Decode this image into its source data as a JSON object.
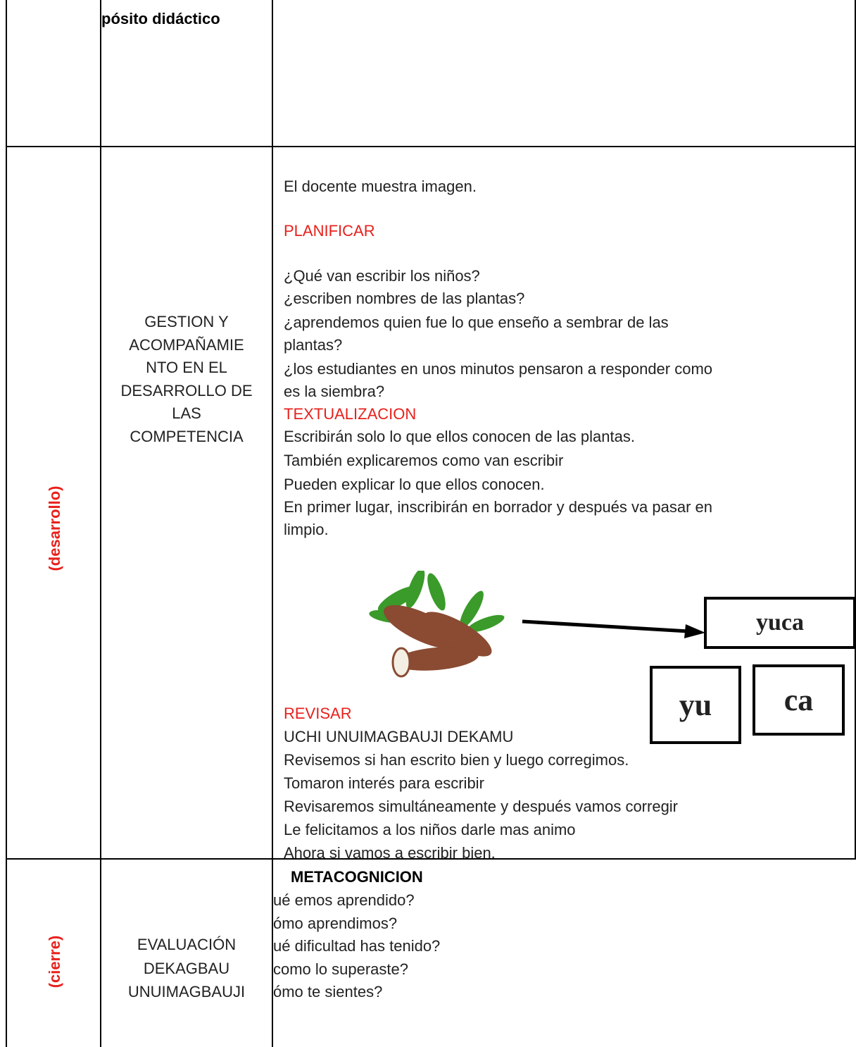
{
  "rows": [
    {
      "process": "pósito didáctico"
    },
    {
      "phase": "(desarrollo)",
      "process": [
        "GESTION Y",
        "ACOMPAÑAMIE",
        "NTO   EN EL",
        "DESARROLLO DE",
        "LAS",
        "COMPETENCIA"
      ],
      "content": [
        "El docente muestra imagen.",
        "PLANIFICAR",
        "¿Qué van escribir los niños?",
        "¿escriben nombres de las plantas?",
        "¿aprendemos quien fue lo que enseño a sembrar de las",
        "plantas?",
        "¿los estudiantes en unos minutos pensaron a responder como",
        "es la siembra?",
        "TEXTUALIZACION",
        "Escribirán solo lo que ellos conocen de las plantas.",
        "También explicaremos como van escribir",
        "Pueden explicar lo que ellos conocen.",
        "En primer lugar, inscribirán en borrador y después va pasar en",
        "limpio."
      ],
      "figure": {
        "word": "yuca",
        "syllables": [
          "yu",
          "ca"
        ]
      },
      "review": [
        "REVISAR",
        "UCHI UNUIMAGBAUJI DEKAMU",
        "Revisemos si han escrito bien y luego corregimos.",
        "Tomaron interés para escribir",
        "Revisaremos simultáneamente y después vamos corregir",
        "Le felicitamos a los niños darle mas animo",
        "Ahora si vamos a escribir bien."
      ]
    },
    {
      "phase": "(cierre)",
      "process": [
        "EVALUACIÓN",
        "DEKAGBAU",
        "UNUIMAGBAUJI"
      ],
      "content": [
        "METACOGNICION",
        "ué emos aprendido?",
        "ómo aprendimos?",
        "ué dificultad has tenido?",
        "como lo superaste?",
        "ómo te sientes?"
      ]
    }
  ]
}
